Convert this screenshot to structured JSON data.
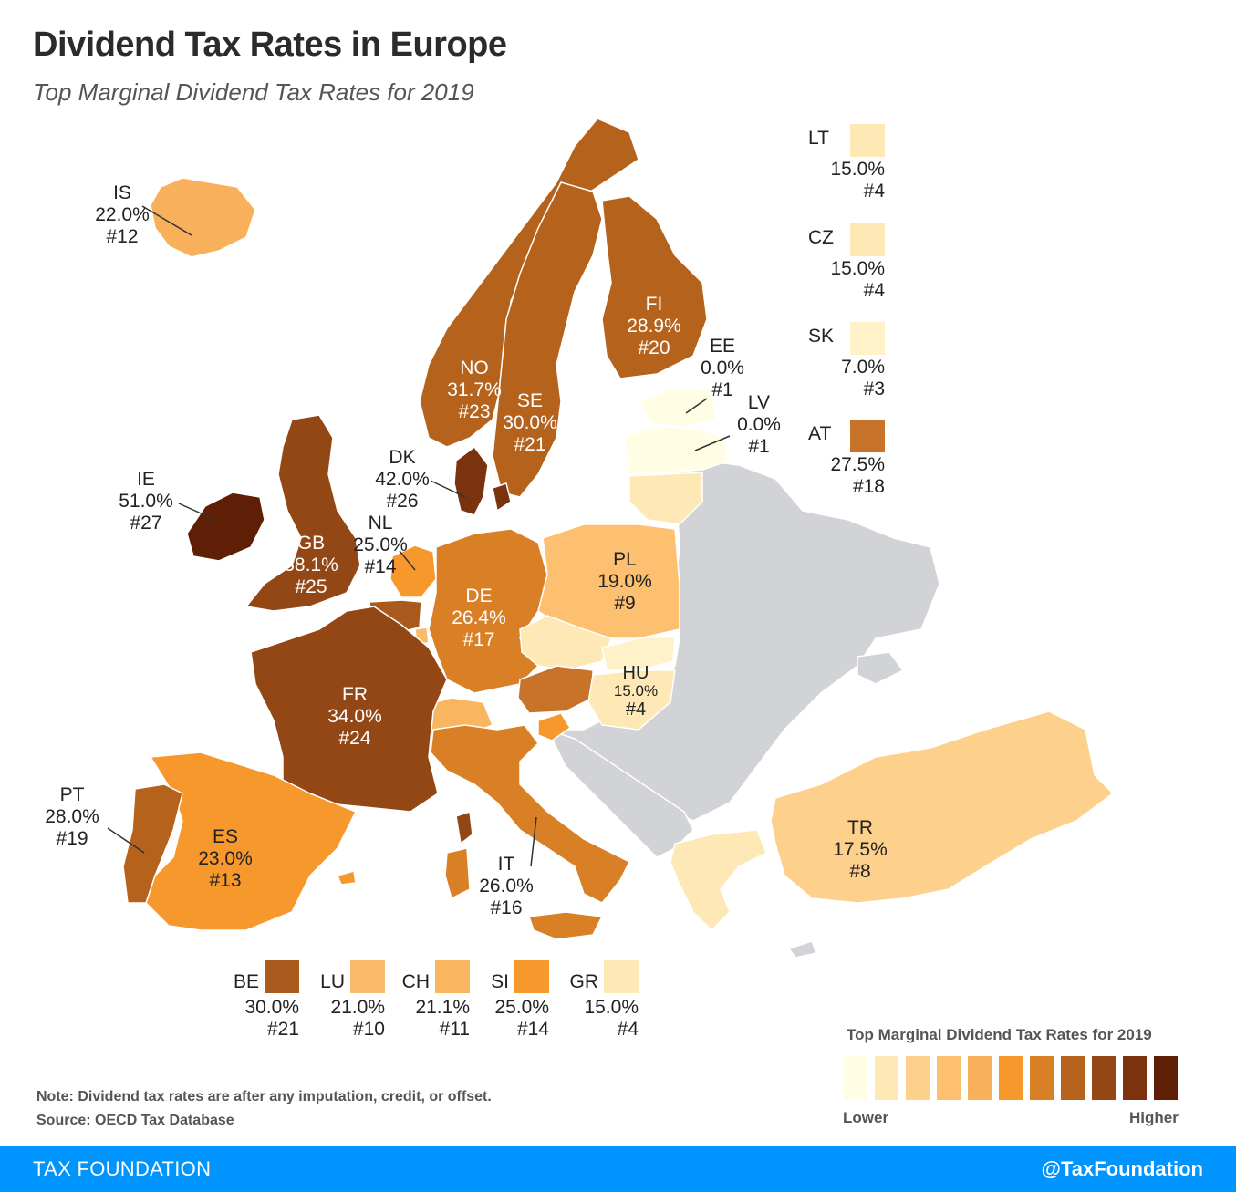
{
  "title": "Dividend Tax Rates in Europe",
  "subtitle": "Top Marginal Dividend Tax Rates for 2019",
  "colors": {
    "scale": [
      "#fffde3",
      "#fde8b6",
      "#fdd08c",
      "#fcc070",
      "#f9b05a",
      "#f7982d",
      "#d97f25",
      "#b5621d",
      "#934715",
      "#7a320f",
      "#5f1f06"
    ],
    "nodata": "#d2d3d6",
    "footer": "#0094ff"
  },
  "countries": [
    {
      "code": "IS",
      "rate": "22.0%",
      "rank": "#12",
      "color": "#f9b05a"
    },
    {
      "code": "NO",
      "rate": "31.7%",
      "rank": "#23",
      "color": "#b5621d"
    },
    {
      "code": "SE",
      "rate": "30.0%",
      "rank": "#21",
      "color": "#b5621d"
    },
    {
      "code": "FI",
      "rate": "28.9%",
      "rank": "#20",
      "color": "#b5621d"
    },
    {
      "code": "EE",
      "rate": "0.0%",
      "rank": "#1",
      "color": "#fffde3"
    },
    {
      "code": "LV",
      "rate": "0.0%",
      "rank": "#1",
      "color": "#fffde3"
    },
    {
      "code": "DK",
      "rate": "42.0%",
      "rank": "#26",
      "color": "#7a320f"
    },
    {
      "code": "IE",
      "rate": "51.0%",
      "rank": "#27",
      "color": "#5f1f06"
    },
    {
      "code": "GB",
      "rate": "38.1%",
      "rank": "#25",
      "color": "#934715"
    },
    {
      "code": "NL",
      "rate": "25.0%",
      "rank": "#14",
      "color": "#f7982d"
    },
    {
      "code": "DE",
      "rate": "26.4%",
      "rank": "#17",
      "color": "#d97f25"
    },
    {
      "code": "PL",
      "rate": "19.0%",
      "rank": "#9",
      "color": "#fcc070"
    },
    {
      "code": "FR",
      "rate": "34.0%",
      "rank": "#24",
      "color": "#934715"
    },
    {
      "code": "HU",
      "rate": "15.0%",
      "rank": "#4",
      "color": "#fde8b6"
    },
    {
      "code": "PT",
      "rate": "28.0%",
      "rank": "#19",
      "color": "#b5621d"
    },
    {
      "code": "ES",
      "rate": "23.0%",
      "rank": "#13",
      "color": "#f7982d"
    },
    {
      "code": "IT",
      "rate": "26.0%",
      "rank": "#16",
      "color": "#d97f25"
    },
    {
      "code": "TR",
      "rate": "17.5%",
      "rank": "#8",
      "color": "#fdd08c"
    }
  ],
  "side_legend": [
    {
      "code": "LT",
      "rate": "15.0%",
      "rank": "#4",
      "color": "#fde8b6"
    },
    {
      "code": "CZ",
      "rate": "15.0%",
      "rank": "#4",
      "color": "#fde8b6"
    },
    {
      "code": "SK",
      "rate": "7.0%",
      "rank": "#3",
      "color": "#fff2c8"
    },
    {
      "code": "AT",
      "rate": "27.5%",
      "rank": "#18",
      "color": "#c7742a"
    }
  ],
  "bottom_legend": [
    {
      "code": "BE",
      "rate": "30.0%",
      "rank": "#21",
      "color": "#a95a1c"
    },
    {
      "code": "LU",
      "rate": "21.0%",
      "rank": "#10",
      "color": "#fbbb6a"
    },
    {
      "code": "CH",
      "rate": "21.1%",
      "rank": "#11",
      "color": "#f9b560"
    },
    {
      "code": "SI",
      "rate": "25.0%",
      "rank": "#14",
      "color": "#f7982d"
    },
    {
      "code": "GR",
      "rate": "15.0%",
      "rank": "#4",
      "color": "#fde8b6"
    }
  ],
  "scale_legend": {
    "title": "Top Marginal Dividend Tax Rates for 2019",
    "low": "Lower",
    "high": "Higher"
  },
  "note": "Note: Dividend tax rates are after any imputation, credit, or offset.",
  "source": "Source: OECD Tax Database",
  "footer": {
    "brand": "TAX FOUNDATION",
    "handle": "@TaxFoundation"
  }
}
